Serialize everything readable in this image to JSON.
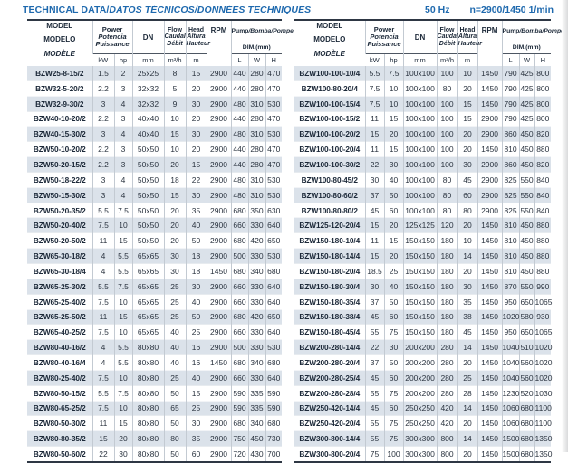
{
  "page": {
    "title_en": "TECHNICAL DATA/",
    "title_intl": "DATOS TÉCNICOS/DONNÉES TECHNIQUES",
    "frequency": "50 Hz",
    "speed": "n=2900/1450 1/min"
  },
  "colors": {
    "accent_blue": "#1e69ae",
    "header_text": "#1b2838",
    "row_stripe": "#dbe2ea",
    "border_dark": "#2e3744",
    "border_light": "#c3cad2"
  },
  "header": {
    "model_en": "MODEL",
    "model_es": "MODELO",
    "model_fr": "MODÈLE",
    "power_en": "Power",
    "power_es": "Potencia",
    "power_fr": "Puissance",
    "unit_kw": "kW",
    "unit_hp": "hp",
    "dn": "DN",
    "unit_mm": "mm",
    "flow_en": "Flow",
    "flow_es": "Caudal",
    "flow_fr": "Débit",
    "unit_flow": "m³/h",
    "head_en": "Head",
    "head_es": "Altura",
    "head_fr": "Hauteur",
    "unit_m": "m",
    "rpm": "RPM",
    "dim_en": "Pump",
    "dim_intl": "/Bomba/Pompe",
    "dim_unit": "DIM.(mm)",
    "unit_l": "L",
    "unit_w": "W",
    "unit_h": "H"
  },
  "left_table": {
    "rows": [
      [
        "BZW25-8-15/2",
        "1.5",
        "2",
        "25x25",
        "8",
        "15",
        "2900",
        "440",
        "280",
        "470"
      ],
      [
        "BZW32-5-20/2",
        "2.2",
        "3",
        "32x32",
        "5",
        "20",
        "2900",
        "440",
        "280",
        "470"
      ],
      [
        "BZW32-9-30/2",
        "3",
        "4",
        "32x32",
        "9",
        "30",
        "2900",
        "480",
        "310",
        "530"
      ],
      [
        "BZW40-10-20/2",
        "2.2",
        "3",
        "40x40",
        "10",
        "20",
        "2900",
        "440",
        "280",
        "470"
      ],
      [
        "BZW40-15-30/2",
        "3",
        "4",
        "40x40",
        "15",
        "30",
        "2900",
        "480",
        "310",
        "530"
      ],
      [
        "BZW50-10-20/2",
        "2.2",
        "3",
        "50x50",
        "10",
        "20",
        "2900",
        "440",
        "280",
        "470"
      ],
      [
        "BZW50-20-15/2",
        "2.2",
        "3",
        "50x50",
        "20",
        "15",
        "2900",
        "440",
        "280",
        "470"
      ],
      [
        "BZW50-18-22/2",
        "3",
        "4",
        "50x50",
        "18",
        "22",
        "2900",
        "480",
        "310",
        "530"
      ],
      [
        "BZW50-15-30/2",
        "3",
        "4",
        "50x50",
        "15",
        "30",
        "2900",
        "480",
        "310",
        "530"
      ],
      [
        "BZW50-20-35/2",
        "5.5",
        "7.5",
        "50x50",
        "20",
        "35",
        "2900",
        "680",
        "350",
        "630"
      ],
      [
        "BZW50-20-40/2",
        "7.5",
        "10",
        "50x50",
        "20",
        "40",
        "2900",
        "660",
        "330",
        "640"
      ],
      [
        "BZW50-20-50/2",
        "11",
        "15",
        "50x50",
        "20",
        "50",
        "2900",
        "680",
        "420",
        "650"
      ],
      [
        "BZW65-30-18/2",
        "4",
        "5.5",
        "65x65",
        "30",
        "18",
        "2900",
        "500",
        "330",
        "530"
      ],
      [
        "BZW65-30-18/4",
        "4",
        "5.5",
        "65x65",
        "30",
        "18",
        "1450",
        "680",
        "340",
        "680"
      ],
      [
        "BZW65-25-30/2",
        "5.5",
        "7.5",
        "65x65",
        "25",
        "30",
        "2900",
        "660",
        "330",
        "640"
      ],
      [
        "BZW65-25-40/2",
        "7.5",
        "10",
        "65x65",
        "25",
        "40",
        "2900",
        "660",
        "330",
        "640"
      ],
      [
        "BZW65-25-50/2",
        "11",
        "15",
        "65x65",
        "25",
        "50",
        "2900",
        "680",
        "420",
        "650"
      ],
      [
        "BZW65-40-25/2",
        "7.5",
        "10",
        "65x65",
        "40",
        "25",
        "2900",
        "660",
        "330",
        "640"
      ],
      [
        "BZW80-40-16/2",
        "4",
        "5.5",
        "80x80",
        "40",
        "16",
        "2900",
        "500",
        "330",
        "530"
      ],
      [
        "BZW80-40-16/4",
        "4",
        "5.5",
        "80x80",
        "40",
        "16",
        "1450",
        "680",
        "340",
        "680"
      ],
      [
        "BZW80-25-40/2",
        "7.5",
        "10",
        "80x80",
        "25",
        "40",
        "2900",
        "660",
        "330",
        "640"
      ],
      [
        "BZW80-50-15/2",
        "5.5",
        "7.5",
        "80x80",
        "50",
        "15",
        "2900",
        "590",
        "335",
        "590"
      ],
      [
        "BZW80-65-25/2",
        "7.5",
        "10",
        "80x80",
        "65",
        "25",
        "2900",
        "590",
        "335",
        "590"
      ],
      [
        "BZW80-50-30/2",
        "11",
        "15",
        "80x80",
        "50",
        "30",
        "2900",
        "680",
        "340",
        "680"
      ],
      [
        "BZW80-80-35/2",
        "15",
        "20",
        "80x80",
        "80",
        "35",
        "2900",
        "750",
        "450",
        "730"
      ],
      [
        "BZW80-50-60/2",
        "22",
        "30",
        "80x80",
        "50",
        "60",
        "2900",
        "720",
        "430",
        "700"
      ]
    ]
  },
  "right_table": {
    "rows": [
      [
        "BZW100-100-10/4",
        "5.5",
        "7.5",
        "100x100",
        "100",
        "10",
        "1450",
        "790",
        "425",
        "800"
      ],
      [
        "BZW100-80-20/4",
        "7.5",
        "10",
        "100x100",
        "80",
        "20",
        "1450",
        "790",
        "425",
        "800"
      ],
      [
        "BZW100-100-15/4",
        "7.5",
        "10",
        "100x100",
        "100",
        "15",
        "1450",
        "790",
        "425",
        "800"
      ],
      [
        "BZW100-100-15/2",
        "11",
        "15",
        "100x100",
        "100",
        "15",
        "2900",
        "790",
        "425",
        "800"
      ],
      [
        "BZW100-100-20/2",
        "15",
        "20",
        "100x100",
        "100",
        "20",
        "2900",
        "860",
        "450",
        "820"
      ],
      [
        "BZW100-100-20/4",
        "11",
        "15",
        "100x100",
        "100",
        "20",
        "1450",
        "810",
        "450",
        "880"
      ],
      [
        "BZW100-100-30/2",
        "22",
        "30",
        "100x100",
        "100",
        "30",
        "2900",
        "860",
        "450",
        "820"
      ],
      [
        "BZW100-80-45/2",
        "30",
        "40",
        "100x100",
        "80",
        "45",
        "2900",
        "825",
        "550",
        "840"
      ],
      [
        "BZW100-80-60/2",
        "37",
        "50",
        "100x100",
        "80",
        "60",
        "2900",
        "825",
        "550",
        "840"
      ],
      [
        "BZW100-80-80/2",
        "45",
        "60",
        "100x100",
        "80",
        "80",
        "2900",
        "825",
        "550",
        "840"
      ],
      [
        "BZW125-120-20/4",
        "15",
        "20",
        "125x125",
        "120",
        "20",
        "1450",
        "810",
        "450",
        "880"
      ],
      [
        "BZW150-180-10/4",
        "11",
        "15",
        "150x150",
        "180",
        "10",
        "1450",
        "810",
        "450",
        "880"
      ],
      [
        "BZW150-180-14/4",
        "15",
        "20",
        "150x150",
        "180",
        "14",
        "1450",
        "810",
        "450",
        "880"
      ],
      [
        "BZW150-180-20/4",
        "18.5",
        "25",
        "150x150",
        "180",
        "20",
        "1450",
        "810",
        "450",
        "880"
      ],
      [
        "BZW150-180-30/4",
        "30",
        "40",
        "150x150",
        "180",
        "30",
        "1450",
        "870",
        "550",
        "990"
      ],
      [
        "BZW150-180-35/4",
        "37",
        "50",
        "150x150",
        "180",
        "35",
        "1450",
        "950",
        "650",
        "1065"
      ],
      [
        "BZW150-180-38/4",
        "45",
        "60",
        "150x150",
        "180",
        "38",
        "1450",
        "1020",
        "580",
        "930"
      ],
      [
        "BZW150-180-45/4",
        "55",
        "75",
        "150x150",
        "180",
        "45",
        "1450",
        "950",
        "650",
        "1065"
      ],
      [
        "BZW200-280-14/4",
        "22",
        "30",
        "200x200",
        "280",
        "14",
        "1450",
        "1040",
        "510",
        "1020"
      ],
      [
        "BZW200-280-20/4",
        "37",
        "50",
        "200x200",
        "280",
        "20",
        "1450",
        "1040",
        "560",
        "1020"
      ],
      [
        "BZW200-280-25/4",
        "45",
        "60",
        "200x200",
        "280",
        "25",
        "1450",
        "1040",
        "560",
        "1020"
      ],
      [
        "BZW200-280-28/4",
        "55",
        "75",
        "200x200",
        "280",
        "28",
        "1450",
        "1230",
        "520",
        "1030"
      ],
      [
        "BZW250-420-14/4",
        "45",
        "60",
        "250x250",
        "420",
        "14",
        "1450",
        "1060",
        "680",
        "1100"
      ],
      [
        "BZW250-420-20/4",
        "55",
        "75",
        "250x250",
        "420",
        "20",
        "1450",
        "1060",
        "680",
        "1100"
      ],
      [
        "BZW300-800-14/4",
        "55",
        "75",
        "300x300",
        "800",
        "14",
        "1450",
        "1500",
        "680",
        "1350"
      ],
      [
        "BZW300-800-20/4",
        "75",
        "100",
        "300x300",
        "800",
        "20",
        "1450",
        "1500",
        "680",
        "1350"
      ]
    ]
  }
}
